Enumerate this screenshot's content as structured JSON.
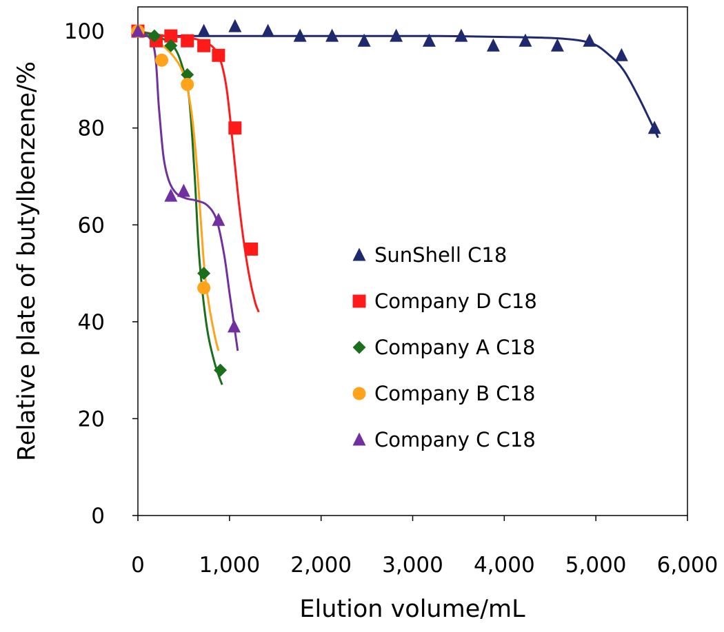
{
  "chart_data": {
    "type": "scatter",
    "title": "",
    "xlabel": "Elution volume/mL",
    "ylabel": "Relative plate of butylbenzene/%",
    "xlim": [
      0,
      6000
    ],
    "ylim": [
      0,
      105
    ],
    "x_ticks": [
      0,
      1000,
      2000,
      3000,
      4000,
      5000,
      6000
    ],
    "x_tick_labels": [
      "0",
      "1,000",
      "2,000",
      "3,000",
      "4,000",
      "5,000",
      "6,000"
    ],
    "y_ticks": [
      0,
      20,
      40,
      60,
      80,
      100
    ],
    "y_tick_labels": [
      "0",
      "20",
      "40",
      "60",
      "80",
      "100"
    ],
    "grid": false,
    "legend_position": "center-right",
    "series": [
      {
        "name": "SunShell C18",
        "color": "#1f2a6e",
        "marker": "triangle",
        "x": [
          0,
          720,
          1060,
          1420,
          1770,
          2120,
          2470,
          2820,
          3180,
          3530,
          3880,
          4230,
          4580,
          4930,
          5280,
          5640
        ],
        "y": [
          100,
          100,
          101,
          100,
          99,
          99,
          98,
          99,
          98,
          99,
          97,
          98,
          97,
          98,
          95,
          80
        ],
        "trend_x": [
          0,
          800,
          1600,
          2400,
          3200,
          4000,
          4600,
          4950,
          5150,
          5300,
          5450,
          5580,
          5680
        ],
        "trend_y": [
          99,
          99,
          99,
          99,
          99,
          98.8,
          98.5,
          97.5,
          95,
          92,
          87,
          82,
          78
        ]
      },
      {
        "name": "Company D C18",
        "color": "#ff1a1a",
        "marker": "square",
        "x": [
          0,
          200,
          360,
          540,
          720,
          880,
          1060,
          1240
        ],
        "y": [
          100,
          98,
          99,
          98,
          97,
          95,
          80,
          55
        ],
        "trend_x": [
          0,
          300,
          600,
          800,
          900,
          970,
          1040,
          1100,
          1160,
          1220,
          1280,
          1320
        ],
        "trend_y": [
          100,
          99,
          98.5,
          97,
          94,
          88,
          76,
          65,
          56,
          49,
          44,
          42
        ]
      },
      {
        "name": "Company A C18",
        "color": "#1b6e1b",
        "marker": "diamond",
        "x": [
          0,
          180,
          360,
          540,
          720,
          900
        ],
        "y": [
          100,
          99,
          97,
          91,
          50,
          30
        ],
        "trend_x": [
          0,
          200,
          380,
          480,
          560,
          620,
          660,
          700,
          760,
          830,
          880,
          920
        ],
        "trend_y": [
          100,
          99,
          97,
          93,
          86,
          70,
          56,
          47,
          38,
          32,
          29,
          27
        ]
      },
      {
        "name": "Company B C18",
        "color": "#ffa31a",
        "marker": "circle",
        "x": [
          0,
          260,
          540,
          720
        ],
        "y": [
          100,
          94,
          89,
          47
        ],
        "trend_x": [
          0,
          200,
          380,
          500,
          580,
          640,
          690,
          730,
          780,
          840,
          880
        ],
        "trend_y": [
          100,
          98,
          95,
          91,
          84,
          73,
          60,
          50,
          43,
          37,
          34
        ]
      },
      {
        "name": "Company C C18",
        "color": "#7030a0",
        "marker": "triangle",
        "x": [
          0,
          360,
          500,
          880,
          1050
        ],
        "y": [
          100,
          66,
          67,
          61,
          39
        ],
        "trend_x": [
          0,
          170,
          230,
          280,
          340,
          420,
          520,
          640,
          760,
          860,
          940,
          1000,
          1060,
          1090
        ],
        "trend_y": [
          100,
          97,
          84,
          74,
          69,
          66.5,
          65.5,
          65,
          64,
          61,
          54,
          46,
          38,
          34
        ]
      }
    ]
  }
}
